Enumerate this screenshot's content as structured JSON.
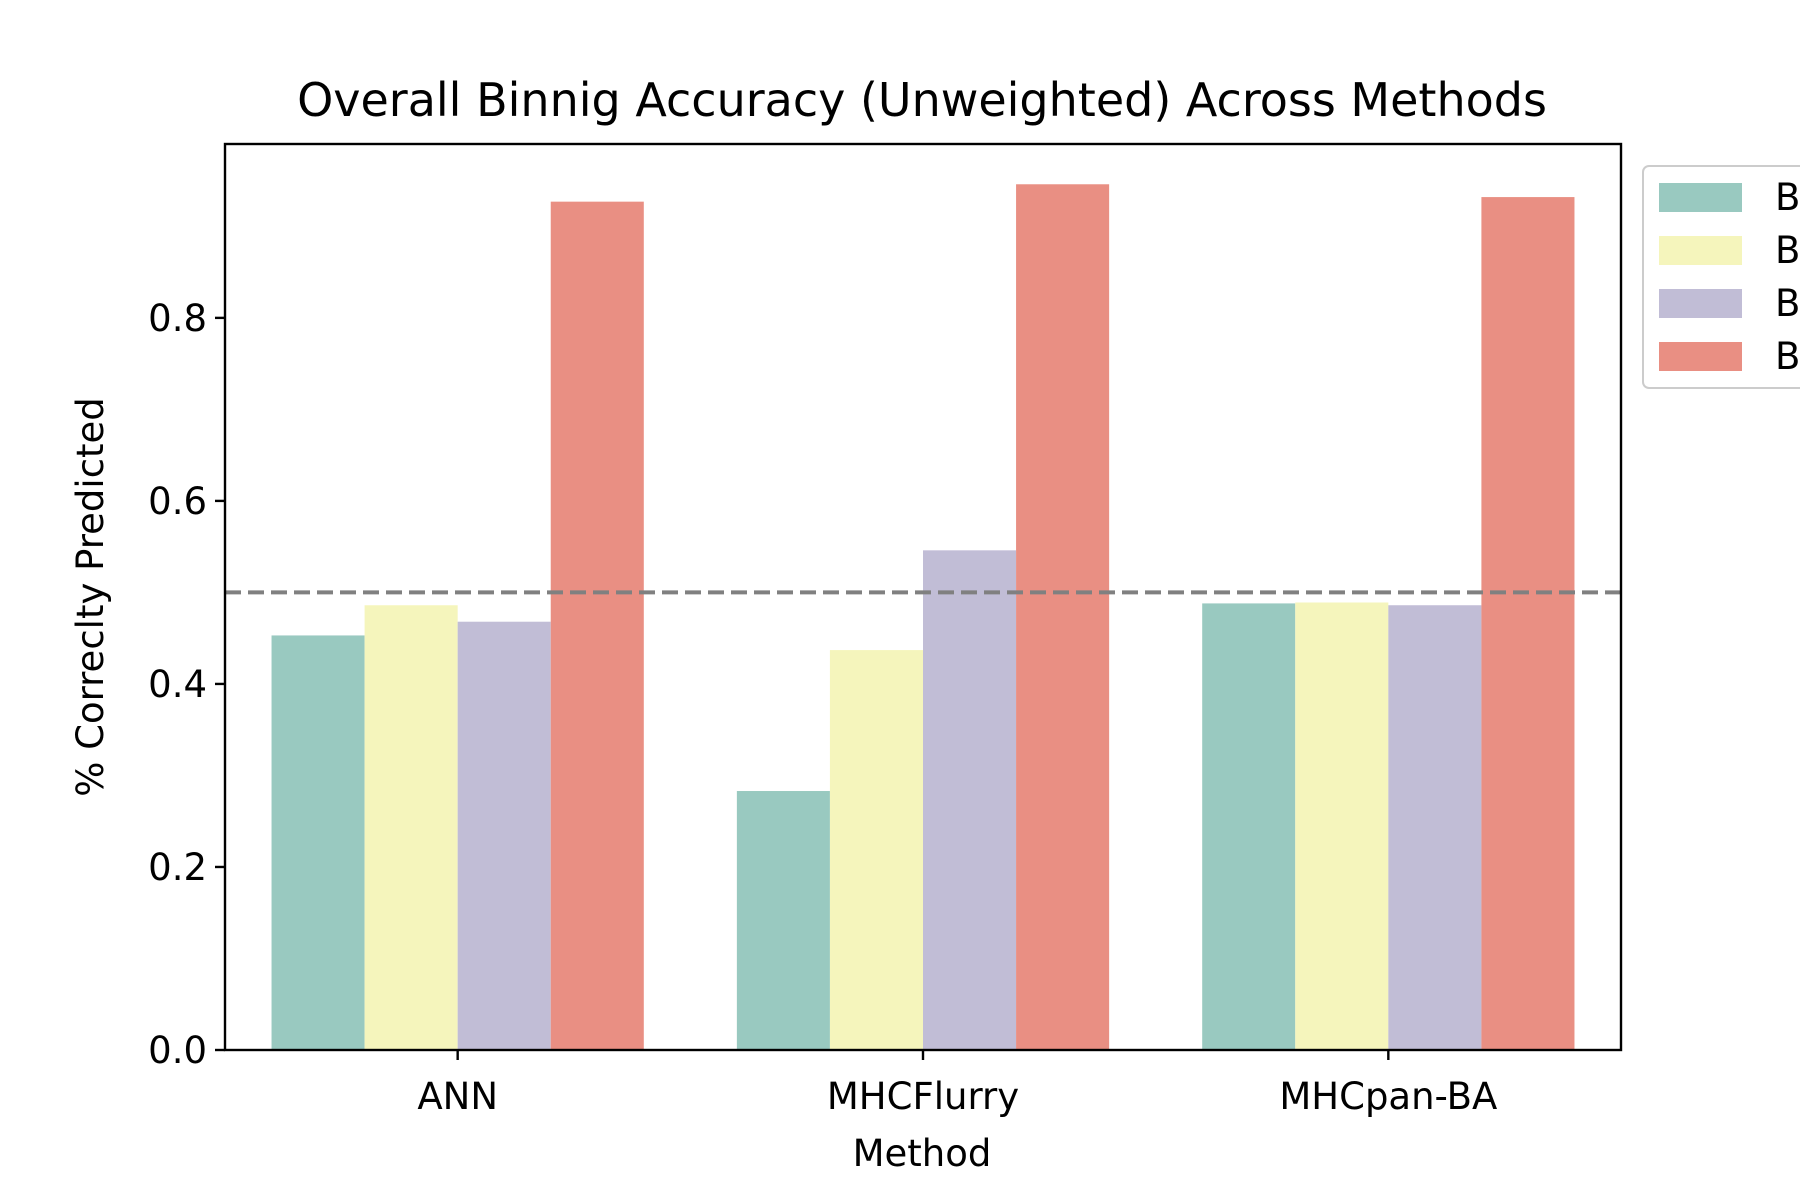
{
  "chart_data": {
    "type": "bar",
    "title": "Overall Binnig Accuracy (Unweighted) Across Methods",
    "xlabel": "Method",
    "ylabel": "% Correclty Predicted",
    "categories": [
      "ANN",
      "MHCFlurry",
      "MHCpan-BA"
    ],
    "series": [
      {
        "name": "B",
        "color": "#99c9c0",
        "values": [
          0.453,
          0.283,
          0.488
        ]
      },
      {
        "name": "B",
        "color": "#f5f5bc",
        "values": [
          0.486,
          0.437,
          0.489
        ]
      },
      {
        "name": "B",
        "color": "#c1bdd6",
        "values": [
          0.468,
          0.546,
          0.486
        ]
      },
      {
        "name": "B",
        "color": "#e98f83",
        "values": [
          0.927,
          0.946,
          0.932
        ]
      }
    ],
    "ylim": [
      0,
      0.99
    ],
    "yticks": [
      "0.0",
      "0.2",
      "0.4",
      "0.6",
      "0.8"
    ],
    "reference_line": {
      "y": 0.5,
      "style": "dashed",
      "color": "#808080"
    },
    "legend": {
      "position": "outside-top-right"
    },
    "grid": false
  }
}
